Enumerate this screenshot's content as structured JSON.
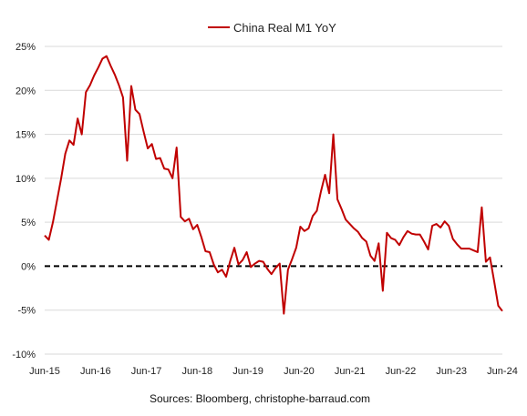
{
  "chart_data": {
    "type": "line",
    "legend": "China Real M1 YoY",
    "source": "Sources: Bloomberg, christophe-barraud.com",
    "x_tick_labels": [
      "Jun-15",
      "Jun-16",
      "Jun-17",
      "Jun-18",
      "Jun-19",
      "Jun-20",
      "Jun-21",
      "Jun-22",
      "Jun-23",
      "Jun-24"
    ],
    "y_tick_labels": [
      "-10%",
      "-5%",
      "0%",
      "5%",
      "10%",
      "15%",
      "20%",
      "25%"
    ],
    "ylim": [
      -10,
      25
    ],
    "grid": "horizontal",
    "legend_position": "top-center",
    "zero_line": "dashed",
    "series_color": "#c00000",
    "x_start": "Jun-15",
    "x_end": "Jun-24",
    "x_unit": "month",
    "series": [
      {
        "name": "China Real M1 YoY",
        "values": [
          3.5,
          3.0,
          5.0,
          7.5,
          10.0,
          12.8,
          14.3,
          13.8,
          16.8,
          15.0,
          19.8,
          20.6,
          21.7,
          22.6,
          23.6,
          23.9,
          22.8,
          21.8,
          20.6,
          19.2,
          12.0,
          20.5,
          17.8,
          17.3,
          15.3,
          13.4,
          13.9,
          12.2,
          12.3,
          11.1,
          11.0,
          10.0,
          13.5,
          5.6,
          5.1,
          5.4,
          4.2,
          4.7,
          3.3,
          1.7,
          1.6,
          0.2,
          -0.7,
          -0.4,
          -1.2,
          0.6,
          2.1,
          0.2,
          0.7,
          1.6,
          -0.1,
          0.3,
          0.6,
          0.5,
          -0.3,
          -0.9,
          -0.2,
          0.3,
          -5.4,
          -0.4,
          0.8,
          2.1,
          4.5,
          4.0,
          4.3,
          5.7,
          6.3,
          8.5,
          10.4,
          8.3,
          15.0,
          7.6,
          6.5,
          5.3,
          4.8,
          4.3,
          3.9,
          3.2,
          2.8,
          1.2,
          0.6,
          2.6,
          -2.8,
          3.8,
          3.2,
          3.0,
          2.4,
          3.3,
          4.0,
          3.7,
          3.6,
          3.6,
          2.8,
          1.9,
          4.6,
          4.8,
          4.4,
          5.1,
          4.6,
          3.1,
          2.5,
          2.0,
          2.0,
          2.0,
          1.8,
          1.6,
          6.7,
          0.5,
          1.0,
          -1.7,
          -4.5,
          -5.1
        ]
      }
    ]
  }
}
